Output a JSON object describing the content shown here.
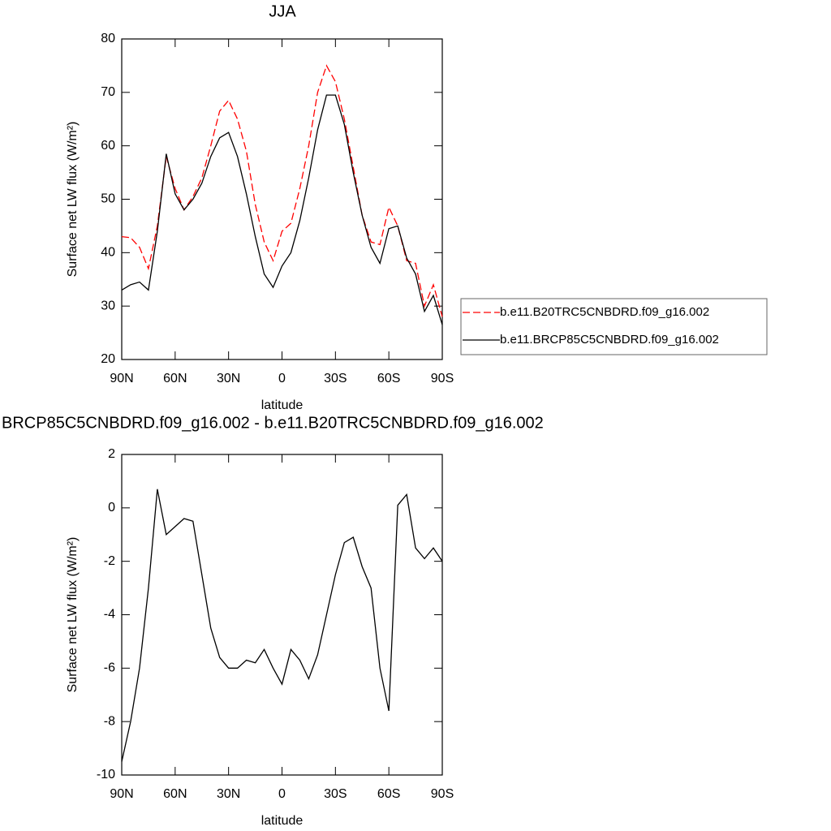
{
  "chart_data": [
    {
      "type": "line",
      "title": "JJA",
      "x_label": "latitude",
      "y_label": "Surface net LW flux (W/m²)",
      "x": [
        90,
        85,
        80,
        75,
        70,
        65,
        60,
        55,
        50,
        45,
        40,
        35,
        30,
        25,
        20,
        15,
        10,
        5,
        0,
        -5,
        -10,
        -15,
        -20,
        -25,
        -30,
        -35,
        -40,
        -45,
        -50,
        -55,
        -60,
        -65,
        -70,
        -75,
        -80,
        -85,
        -90
      ],
      "xlim": [
        90,
        -90
      ],
      "xticks": [
        {
          "value": 90,
          "label": "90N"
        },
        {
          "value": 60,
          "label": "60N"
        },
        {
          "value": 30,
          "label": "30N"
        },
        0,
        {
          "value": -30,
          "label": "30S"
        },
        {
          "value": -60,
          "label": "60S"
        },
        {
          "value": -90,
          "label": "90S"
        }
      ],
      "ylim": [
        20,
        80
      ],
      "yticks": [
        20,
        30,
        40,
        50,
        60,
        70,
        80
      ],
      "legend": "right",
      "series": [
        {
          "name": "b.e11.B20TRC5CNBDRD.f09_g16.002",
          "color": "#ff0000",
          "dashed": true,
          "values": [
            43,
            42.8,
            41,
            37,
            45,
            58,
            52,
            48,
            50.5,
            54,
            60,
            66.5,
            68.5,
            65,
            59,
            49,
            42,
            38.5,
            44,
            45.5,
            52,
            60,
            70,
            75,
            72,
            65,
            56,
            47,
            42,
            41.5,
            48.5,
            45,
            38.5,
            38,
            30,
            34,
            28
          ]
        },
        {
          "name": "b.e11.BRCP85C5CNBDRD.f09_g16.002",
          "color": "#000000",
          "dashed": false,
          "values": [
            33,
            34,
            34.5,
            33,
            44,
            58.5,
            51,
            48,
            50,
            53,
            58,
            61.5,
            62.5,
            58,
            51,
            43,
            36,
            33.5,
            37.5,
            40,
            46,
            54,
            63,
            69.5,
            69.5,
            64,
            55,
            47,
            41,
            38,
            44.5,
            45,
            39,
            36,
            29,
            32,
            26.5
          ]
        }
      ]
    },
    {
      "type": "line",
      "title": "BRCP85C5CNBDRD.f09_g16.002 - b.e11.B20TRC5CNBDRD.f09_g16.002",
      "x_label": "latitude",
      "y_label": "Surface net LW flux (W/m²)",
      "x": [
        90,
        85,
        80,
        75,
        70,
        65,
        60,
        55,
        50,
        45,
        40,
        35,
        30,
        25,
        20,
        15,
        10,
        5,
        0,
        -5,
        -10,
        -15,
        -20,
        -25,
        -30,
        -35,
        -40,
        -45,
        -50,
        -55,
        -60,
        -65,
        -70,
        -75,
        -80,
        -85,
        -90
      ],
      "xlim": [
        90,
        -90
      ],
      "xticks": [
        {
          "value": 90,
          "label": "90N"
        },
        {
          "value": 60,
          "label": "60N"
        },
        {
          "value": 30,
          "label": "30N"
        },
        0,
        {
          "value": -30,
          "label": "30S"
        },
        {
          "value": -60,
          "label": "60S"
        },
        {
          "value": -90,
          "label": "90S"
        }
      ],
      "ylim": [
        -10,
        2
      ],
      "yticks": [
        -10,
        -8,
        -6,
        -4,
        -2,
        0,
        2
      ],
      "series": [
        {
          "color": "#000000",
          "dashed": false,
          "values": [
            -9.5,
            -8,
            -6,
            -3,
            0.7,
            -1,
            -0.7,
            -0.4,
            -0.5,
            -2.5,
            -4.5,
            -5.6,
            -6,
            -6,
            -5.7,
            -5.8,
            -5.3,
            -6,
            -6.6,
            -5.3,
            -5.7,
            -6.4,
            -5.5,
            -4,
            -2.5,
            -1.3,
            -1.1,
            -2.2,
            -3,
            -6,
            -7.6,
            0.1,
            0.5,
            -1.5,
            -1.9,
            -1.5,
            -2
          ]
        }
      ]
    }
  ]
}
